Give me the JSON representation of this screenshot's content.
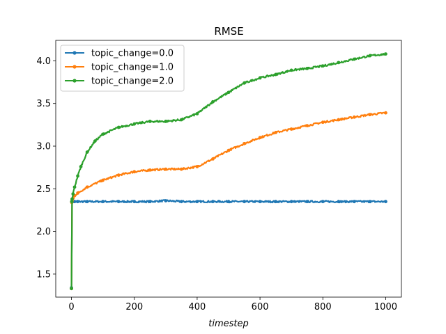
{
  "chart_data": {
    "type": "line",
    "title": "RMSE",
    "xlabel": "timestep",
    "ylabel": "",
    "xlim": [
      -50,
      1050
    ],
    "ylim": [
      1.23,
      4.24
    ],
    "xticks": [
      0,
      200,
      400,
      600,
      800,
      1000
    ],
    "yticks": [
      1.5,
      2.0,
      2.5,
      3.0,
      3.5,
      4.0
    ],
    "xtick_labels": [
      "0",
      "200",
      "400",
      "600",
      "800",
      "1000"
    ],
    "ytick_labels": [
      "1.5",
      "2.0",
      "2.5",
      "3.0",
      "3.5",
      "4.0"
    ],
    "grid": false,
    "legend": "top-left",
    "markers": true,
    "series": [
      {
        "name": "topic_change=0.0",
        "color": "#1f77b4",
        "x": [
          0,
          1,
          2,
          5,
          10,
          20,
          50,
          100,
          150,
          200,
          250,
          300,
          350,
          400,
          450,
          500,
          550,
          600,
          650,
          700,
          750,
          800,
          850,
          900,
          950,
          1000
        ],
        "y": [
          1.34,
          2.35,
          2.35,
          2.35,
          2.35,
          2.35,
          2.35,
          2.35,
          2.35,
          2.35,
          2.35,
          2.36,
          2.35,
          2.35,
          2.35,
          2.35,
          2.35,
          2.35,
          2.35,
          2.35,
          2.35,
          2.35,
          2.35,
          2.35,
          2.35,
          2.35
        ]
      },
      {
        "name": "topic_change=1.0",
        "color": "#ff7f0e",
        "x": [
          0,
          1,
          2,
          5,
          10,
          20,
          50,
          100,
          150,
          200,
          250,
          300,
          350,
          400,
          450,
          500,
          550,
          600,
          650,
          700,
          750,
          800,
          850,
          900,
          950,
          1000
        ],
        "y": [
          1.33,
          2.34,
          2.36,
          2.39,
          2.42,
          2.45,
          2.52,
          2.6,
          2.66,
          2.7,
          2.72,
          2.73,
          2.73,
          2.76,
          2.85,
          2.95,
          3.03,
          3.1,
          3.16,
          3.2,
          3.24,
          3.28,
          3.31,
          3.34,
          3.37,
          3.39
        ]
      },
      {
        "name": "topic_change=2.0",
        "color": "#2ca02c",
        "x": [
          0,
          1,
          2,
          5,
          10,
          20,
          30,
          50,
          75,
          100,
          150,
          200,
          250,
          300,
          350,
          400,
          450,
          500,
          550,
          600,
          650,
          700,
          750,
          800,
          850,
          900,
          950,
          1000
        ],
        "y": [
          1.33,
          2.35,
          2.38,
          2.44,
          2.52,
          2.65,
          2.76,
          2.93,
          3.06,
          3.14,
          3.22,
          3.26,
          3.29,
          3.29,
          3.31,
          3.38,
          3.52,
          3.63,
          3.74,
          3.8,
          3.84,
          3.89,
          3.91,
          3.94,
          3.98,
          4.02,
          4.06,
          4.08
        ]
      }
    ]
  }
}
